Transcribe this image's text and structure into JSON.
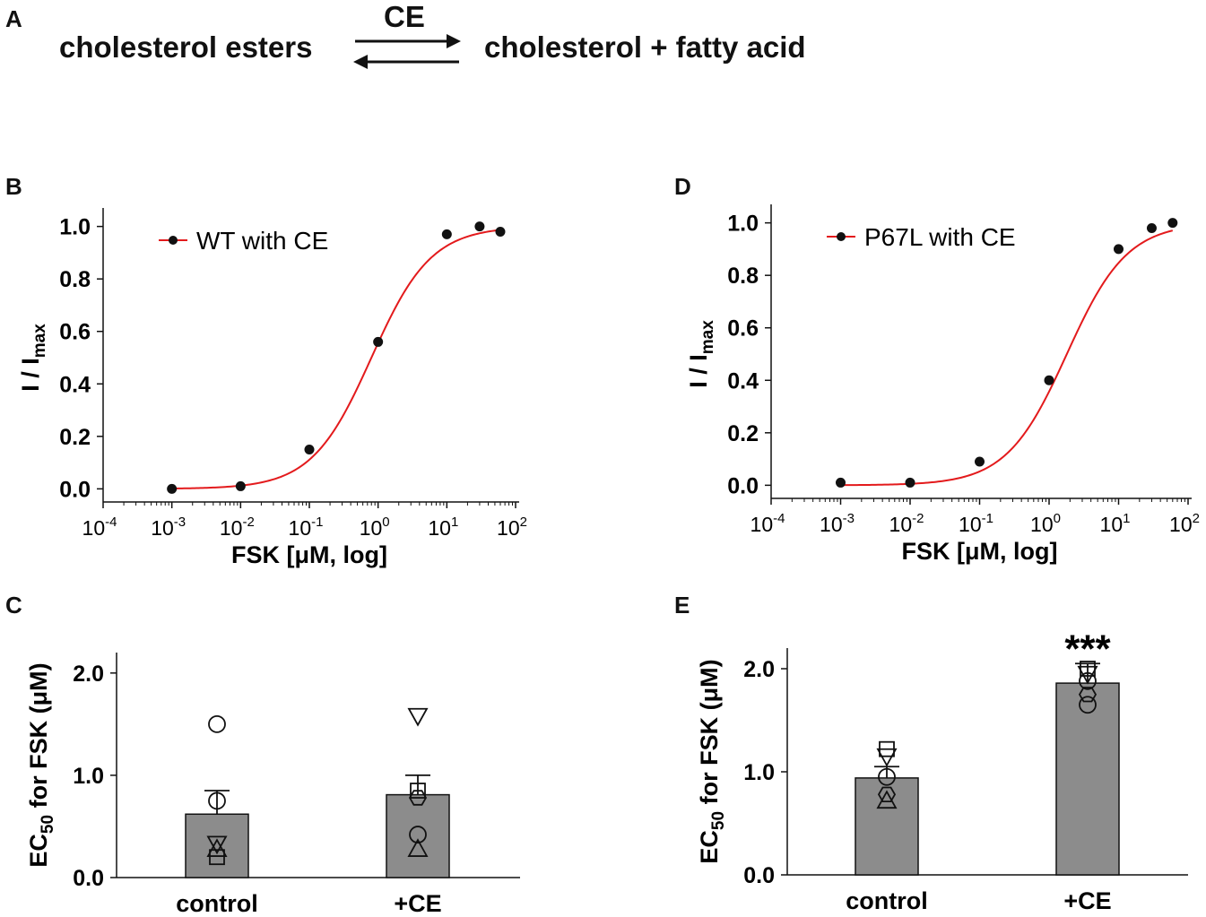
{
  "panel_labels": {
    "a": "A",
    "b": "B",
    "c": "C",
    "d": "D",
    "e": "E"
  },
  "scheme": {
    "reactant": "cholesterol esters",
    "product": "cholesterol + fatty acid",
    "enzyme": "CE"
  },
  "colors": {
    "fit_curve": "#e31a1c",
    "points": "#111111",
    "bar": "#8c8c8c",
    "axis": "#111111"
  },
  "chart_data": [
    {
      "panel": "B",
      "type": "line",
      "title": "",
      "xlabel": "FSK [μM, log]",
      "ylabel_main": "I / I",
      "ylabel_sub": "max",
      "xscale": "log",
      "xlim": [
        0.0001,
        100
      ],
      "ylim": [
        -0.05,
        1.05
      ],
      "x_tick_exponents": [
        "-4",
        "-3",
        "-2",
        "-1",
        "0",
        "1",
        "2"
      ],
      "x_tick_base": "10",
      "y_ticks": [
        "0.0",
        "0.2",
        "0.4",
        "0.6",
        "0.8",
        "1.0"
      ],
      "y_tick_values": [
        0,
        0.2,
        0.4,
        0.6,
        0.8,
        1.0
      ],
      "legend": {
        "label": "WT with CE",
        "placement": "top-left"
      },
      "series": [
        {
          "name": "WT with CE",
          "x": [
            0.001,
            0.01,
            0.1,
            1,
            10,
            30,
            60
          ],
          "y": [
            0.0,
            0.01,
            0.15,
            0.56,
            0.97,
            1.0,
            0.98
          ]
        }
      ],
      "fit": {
        "model": "Hill",
        "ec50": 0.8,
        "hill": 1.0,
        "bottom": 0.0,
        "top": 1.0
      }
    },
    {
      "panel": "D",
      "type": "line",
      "title": "",
      "xlabel": "FSK [μM, log]",
      "ylabel_main": "I / I",
      "ylabel_sub": "max",
      "xscale": "log",
      "xlim": [
        0.0001,
        100
      ],
      "ylim": [
        -0.05,
        1.05
      ],
      "x_tick_exponents": [
        "-4",
        "-3",
        "-2",
        "-1",
        "0",
        "1",
        "2"
      ],
      "x_tick_base": "10",
      "y_ticks": [
        "0.0",
        "0.2",
        "0.4",
        "0.6",
        "0.8",
        "1.0"
      ],
      "y_tick_values": [
        0,
        0.2,
        0.4,
        0.6,
        0.8,
        1.0
      ],
      "legend": {
        "label": "P67L with CE",
        "placement": "top-left"
      },
      "series": [
        {
          "name": "P67L with CE",
          "x": [
            0.001,
            0.01,
            0.1,
            1,
            10,
            30,
            60
          ],
          "y": [
            0.01,
            0.01,
            0.09,
            0.4,
            0.9,
            0.98,
            1.0
          ]
        }
      ],
      "fit": {
        "model": "Hill",
        "ec50": 1.8,
        "hill": 1.0,
        "bottom": 0.0,
        "top": 1.0
      }
    },
    {
      "panel": "C",
      "type": "bar",
      "title": "",
      "xlabel": "",
      "ylabel_main": "EC",
      "ylabel_sub": "50",
      "ylabel_rest": " for FSK (μM)",
      "ylim": [
        0,
        2.2
      ],
      "y_ticks": [
        "0.0",
        "1.0",
        "2.0"
      ],
      "y_tick_values": [
        0,
        1,
        2
      ],
      "categories": [
        "control",
        "+CE"
      ],
      "values": [
        0.62,
        0.81
      ],
      "errors": [
        0.23,
        0.19
      ],
      "significance": [
        "",
        ""
      ],
      "points": [
        [
          {
            "v": 1.5,
            "m": "circle"
          },
          {
            "v": 0.75,
            "m": "circle"
          },
          {
            "v": 0.33,
            "m": "tri-down"
          },
          {
            "v": 0.28,
            "m": "tri-up"
          },
          {
            "v": 0.2,
            "m": "square"
          }
        ],
        [
          {
            "v": 1.58,
            "m": "tri-down"
          },
          {
            "v": 0.85,
            "m": "square"
          },
          {
            "v": 0.78,
            "m": "hexagon"
          },
          {
            "v": 0.42,
            "m": "circle"
          },
          {
            "v": 0.28,
            "m": "tri-up"
          }
        ]
      ]
    },
    {
      "panel": "E",
      "type": "bar",
      "title": "",
      "xlabel": "",
      "ylabel_main": "EC",
      "ylabel_sub": "50",
      "ylabel_rest": " for FSK (μM)",
      "ylim": [
        0,
        2.2
      ],
      "y_ticks": [
        "0.0",
        "1.0",
        "2.0"
      ],
      "y_tick_values": [
        0,
        1,
        2
      ],
      "categories": [
        "control",
        "+CE"
      ],
      "values": [
        0.94,
        1.86
      ],
      "errors": [
        0.11,
        0.19
      ],
      "significance": [
        "",
        "***"
      ],
      "points": [
        [
          {
            "v": 1.22,
            "m": "square"
          },
          {
            "v": 1.15,
            "m": "tri-down"
          },
          {
            "v": 0.95,
            "m": "circle"
          },
          {
            "v": 0.78,
            "m": "hexagon"
          },
          {
            "v": 0.72,
            "m": "tri-up"
          }
        ],
        [
          {
            "v": 2.0,
            "m": "square"
          },
          {
            "v": 1.95,
            "m": "tri-down"
          },
          {
            "v": 1.88,
            "m": "circle"
          },
          {
            "v": 1.75,
            "m": "hexagon"
          },
          {
            "v": 1.65,
            "m": "circle"
          }
        ]
      ]
    }
  ]
}
